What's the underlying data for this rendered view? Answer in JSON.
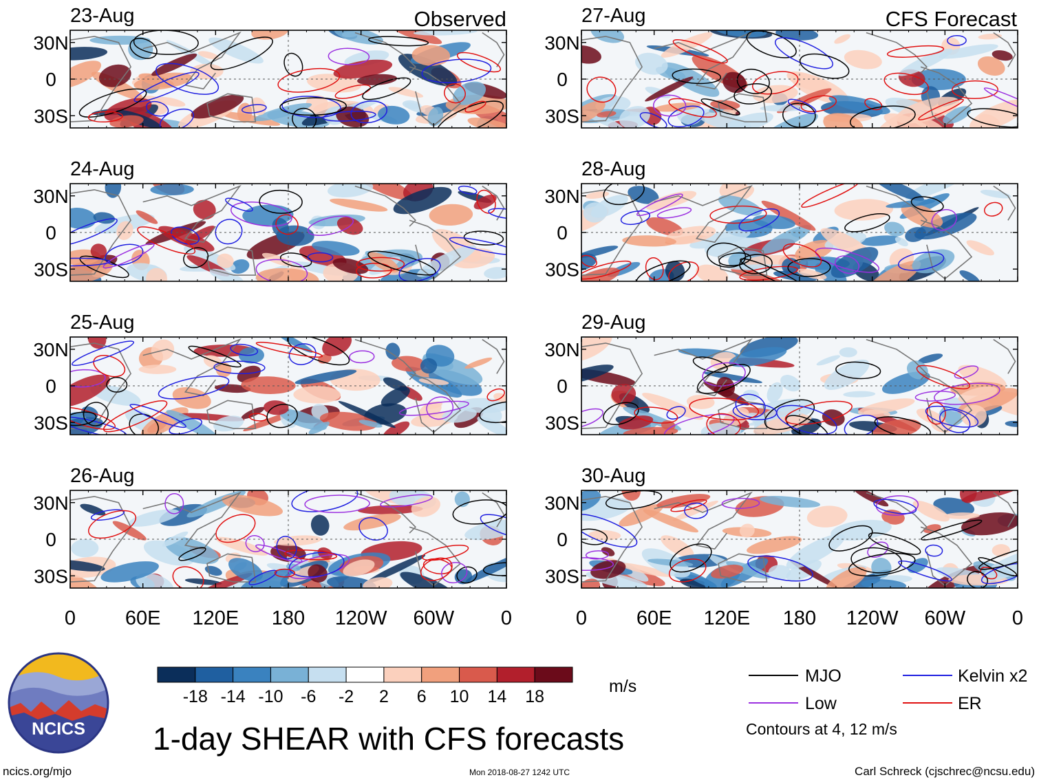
{
  "chart_data": {
    "type": "heatmap",
    "title": "1-day SHEAR with CFS forecasts",
    "units": "m/s",
    "contour_note": "Contours at 4, 12 m/s",
    "column_headers": {
      "left": "Observed",
      "right": "CFS Forecast"
    },
    "panels": [
      {
        "date": "23-Aug",
        "column": "left"
      },
      {
        "date": "24-Aug",
        "column": "left"
      },
      {
        "date": "25-Aug",
        "column": "left"
      },
      {
        "date": "26-Aug",
        "column": "left"
      },
      {
        "date": "27-Aug",
        "column": "right"
      },
      {
        "date": "28-Aug",
        "column": "right"
      },
      {
        "date": "29-Aug",
        "column": "right"
      },
      {
        "date": "30-Aug",
        "column": "right"
      }
    ],
    "y_ticks": [
      {
        "label": "30N",
        "lat": 30
      },
      {
        "label": "0",
        "lat": 0
      },
      {
        "label": "30S",
        "lat": -30
      }
    ],
    "x_ticks": [
      {
        "label": "0",
        "lon": 0
      },
      {
        "label": "60E",
        "lon": 60
      },
      {
        "label": "120E",
        "lon": 120
      },
      {
        "label": "180",
        "lon": 180
      },
      {
        "label": "120W",
        "lon": 240
      },
      {
        "label": "60W",
        "lon": 300
      },
      {
        "label": "0",
        "lon": 360
      }
    ],
    "lat_range": [
      -40,
      40
    ],
    "lon_range": [
      0,
      360
    ],
    "colorbar": {
      "levels": [
        "-18",
        "-14",
        "-10",
        "-6",
        "-2",
        "2",
        "6",
        "10",
        "14",
        "18"
      ],
      "colors": [
        "#0b2e5a",
        "#1f5fa0",
        "#3a82bf",
        "#79b1d6",
        "#c6dff0",
        "#ffffff",
        "#fbd0bd",
        "#f1a07d",
        "#d95a4c",
        "#b21f2c",
        "#6b0b1a"
      ]
    },
    "legend": [
      {
        "label": "MJO",
        "color": "#000000"
      },
      {
        "label": "Kelvin x2",
        "color": "#1f1fe0"
      },
      {
        "label": "Low",
        "color": "#9b30e0"
      },
      {
        "label": "ER",
        "color": "#e01010"
      }
    ]
  },
  "footer": {
    "logo_text": "NCICS",
    "url": "ncics.org/mjo",
    "timestamp": "Mon 2018-08-27 1242 UTC",
    "credit": "Carl Schreck (cjschrec@ncsu.edu)"
  }
}
